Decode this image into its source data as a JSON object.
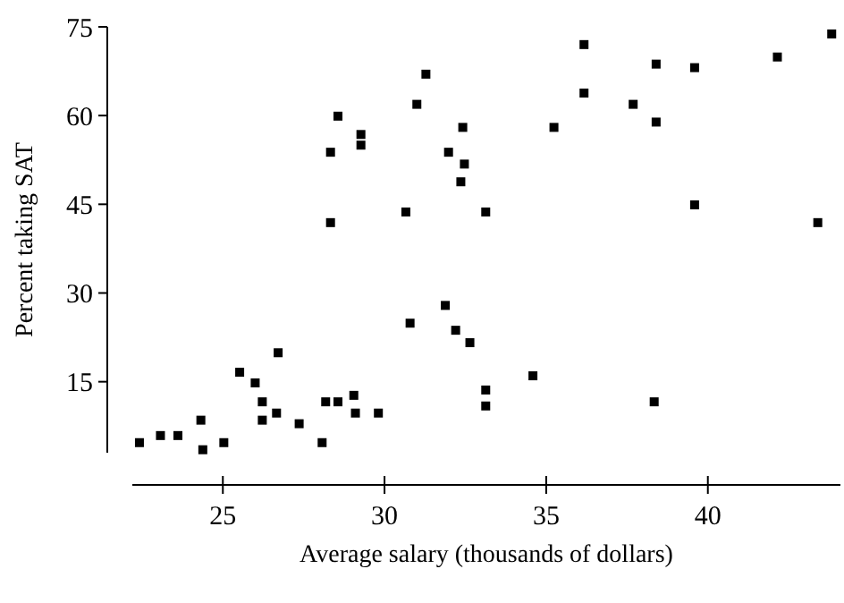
{
  "chart_data": {
    "type": "scatter",
    "xlabel": "Average salary (thousands of dollars)",
    "ylabel": "Percent taking SAT",
    "x": [
      22.42,
      23.07,
      23.61,
      24.32,
      24.38,
      25.03,
      25.52,
      26.0,
      26.22,
      26.22,
      26.66,
      26.71,
      27.36,
      28.07,
      28.18,
      28.56,
      28.33,
      28.33,
      28.56,
      29.27,
      29.27,
      29.05,
      29.1,
      29.81,
      30.66,
      30.79,
      31.0,
      31.28,
      32.42,
      31.98,
      32.47,
      32.36,
      33.13,
      31.88,
      32.2,
      32.64,
      33.13,
      33.13,
      34.59,
      35.24,
      36.17,
      36.17,
      37.69,
      38.4,
      38.4,
      38.34,
      39.59,
      39.59,
      42.15,
      43.4,
      43.83
    ],
    "values": [
      4.7,
      5.9,
      5.9,
      8.5,
      3.5,
      4.7,
      16.6,
      14.8,
      11.6,
      8.5,
      9.7,
      19.9,
      7.9,
      4.7,
      11.6,
      11.6,
      53.8,
      41.9,
      59.9,
      56.8,
      55.0,
      12.7,
      9.7,
      9.7,
      43.7,
      24.9,
      61.9,
      67.0,
      58.0,
      53.8,
      51.8,
      48.8,
      43.7,
      27.9,
      23.7,
      21.6,
      13.6,
      10.9,
      16.0,
      58.0,
      72.0,
      63.8,
      61.9,
      68.7,
      58.9,
      11.6,
      68.1,
      44.9,
      69.9,
      41.9,
      73.8
    ],
    "color": "#000000",
    "marker": "square",
    "grid": false,
    "xlim": [
      22.2,
      44.1
    ],
    "ylim": [
      3,
      75
    ],
    "xticks": [
      25,
      30,
      35,
      40
    ],
    "yticks": [
      15,
      30,
      45,
      60,
      75
    ]
  }
}
